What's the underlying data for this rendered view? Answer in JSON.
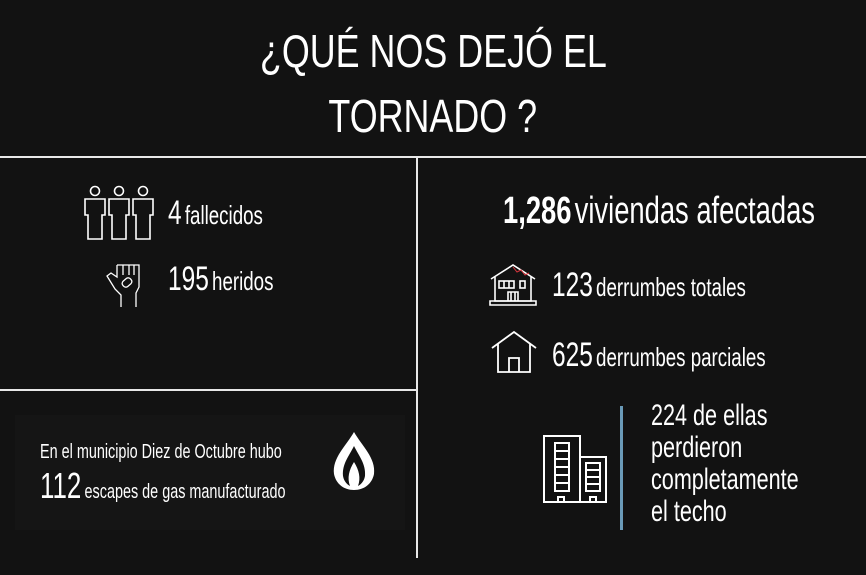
{
  "title": {
    "line1": "¿QUÉ NOS DEJÓ EL",
    "line2": "TORNADO ?"
  },
  "casualties": {
    "deaths": {
      "value": "4",
      "label": "fallecidos",
      "icon": "people-icon"
    },
    "injured": {
      "value": "195",
      "label": "heridos",
      "icon": "injured-hand-icon"
    }
  },
  "gas": {
    "line1": "En el municipio Diez de Octubre hubo",
    "value": "112",
    "label": "escapes de gas manufacturado",
    "icon": "flame-icon"
  },
  "housing": {
    "total": {
      "value": "1,286",
      "label": "viviendas afectadas"
    },
    "full_collapse": {
      "value": "123",
      "label": "derrumbes totales",
      "icon": "damaged-house-icon"
    },
    "partial_collapse": {
      "value": "625",
      "label": "derrumbes parciales",
      "icon": "house-icon"
    },
    "roofs": {
      "lines": [
        "224 de ellas",
        "perdieron",
        "completamente",
        "el techo"
      ],
      "icon": "buildings-icon"
    }
  },
  "colors": {
    "background": "#121212",
    "text": "#ffffff",
    "accent_line": "#6a9ab8",
    "damage_mark": "#d9363e"
  }
}
